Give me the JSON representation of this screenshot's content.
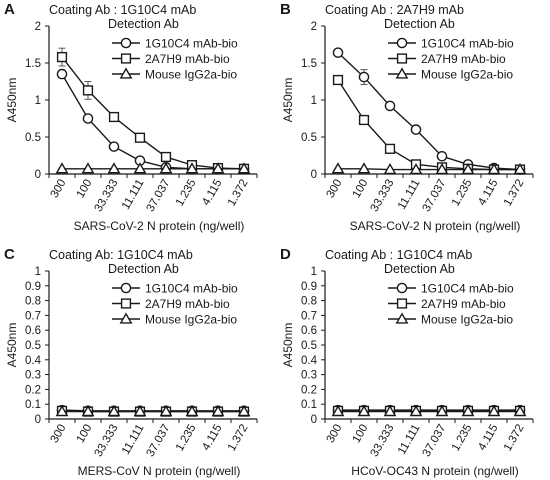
{
  "chart_data": [
    {
      "type": "line",
      "panel": "A",
      "coating_label": "Coating Ab : 1G10C4 mAb",
      "detection_label": "Detection Ab",
      "xlabel": "SARS-CoV-2 N protein (ng/well)",
      "ylabel": "A450nm",
      "categories": [
        "300",
        "100",
        "33.333",
        "11.111",
        "37.037",
        "1.235",
        "4.115",
        "1.372"
      ],
      "ylim": [
        0,
        2
      ],
      "yticks": [
        "0",
        "0.5",
        "1",
        "1.5",
        "2"
      ],
      "legend_position": "top-right",
      "series": [
        {
          "name": "1G10C4 mAb-bio",
          "marker": "circle",
          "values": [
            1.35,
            0.75,
            0.37,
            0.18,
            0.09,
            0.07,
            0.07,
            0.07
          ],
          "errors": [
            0.05,
            0.02,
            0.02,
            0.01,
            0.01,
            0.0,
            0.0,
            0.0
          ]
        },
        {
          "name": "2A7H9 mAb-bio",
          "marker": "square",
          "values": [
            1.58,
            1.13,
            0.77,
            0.49,
            0.23,
            0.12,
            0.08,
            0.07
          ],
          "errors": [
            0.12,
            0.12,
            0.03,
            0.02,
            0.02,
            0.01,
            0.01,
            0.01
          ]
        },
        {
          "name": "Mouse IgG2a-bio",
          "marker": "triangle",
          "values": [
            0.07,
            0.07,
            0.07,
            0.07,
            0.07,
            0.07,
            0.07,
            0.07
          ],
          "errors": [
            0,
            0,
            0,
            0,
            0,
            0,
            0,
            0
          ]
        }
      ]
    },
    {
      "type": "line",
      "panel": "B",
      "coating_label": "Coating Ab : 2A7H9 mAb",
      "detection_label": "Detection Ab",
      "xlabel": "SARS-CoV-2 N protein (ng/well)",
      "ylabel": "A450nm",
      "categories": [
        "300",
        "100",
        "33.333",
        "11.111",
        "37.037",
        "1.235",
        "4.115",
        "1.372"
      ],
      "ylim": [
        0,
        2
      ],
      "yticks": [
        "0",
        "0.5",
        "1",
        "1.5",
        "2"
      ],
      "legend_position": "top-right",
      "series": [
        {
          "name": "1G10C4 mAb-bio",
          "marker": "circle",
          "values": [
            1.64,
            1.31,
            0.92,
            0.6,
            0.24,
            0.13,
            0.08,
            0.06
          ],
          "errors": [
            0.02,
            0.1,
            0.02,
            0.02,
            0.02,
            0.01,
            0.01,
            0.01
          ]
        },
        {
          "name": "2A7H9 mAb-bio",
          "marker": "square",
          "values": [
            1.27,
            0.73,
            0.34,
            0.13,
            0.09,
            0.07,
            0.06,
            0.06
          ],
          "errors": [
            0.02,
            0.02,
            0.02,
            0.01,
            0.01,
            0.0,
            0.0,
            0.0
          ]
        },
        {
          "name": "Mouse IgG2a-bio",
          "marker": "triangle",
          "values": [
            0.07,
            0.07,
            0.06,
            0.06,
            0.06,
            0.06,
            0.06,
            0.06
          ],
          "errors": [
            0,
            0,
            0,
            0,
            0,
            0,
            0,
            0
          ]
        }
      ]
    },
    {
      "type": "line",
      "panel": "C",
      "coating_label": "Coating Ab: 1G10C4 mAb",
      "detection_label": "Detection Ab",
      "xlabel": "MERS-CoV N protein (ng/well)",
      "ylabel": "A450nm",
      "categories": [
        "300",
        "100",
        "33.333",
        "11.111",
        "37.037",
        "1.235",
        "4.115",
        "1.372"
      ],
      "ylim": [
        0,
        1
      ],
      "yticks": [
        "0",
        "0.1",
        "0.2",
        "0.3",
        "0.4",
        "0.5",
        "0.6",
        "0.7",
        "0.8",
        "0.9",
        "1"
      ],
      "legend_position": "top-right",
      "series": [
        {
          "name": "1G10C4 mAb-bio",
          "marker": "circle",
          "values": [
            0.06,
            0.055,
            0.055,
            0.055,
            0.055,
            0.055,
            0.055,
            0.055
          ],
          "errors": [
            0,
            0,
            0,
            0,
            0,
            0,
            0,
            0
          ]
        },
        {
          "name": "2A7H9 mAb-bio",
          "marker": "square",
          "values": [
            0.055,
            0.05,
            0.05,
            0.05,
            0.05,
            0.05,
            0.05,
            0.05
          ],
          "errors": [
            0,
            0,
            0,
            0,
            0,
            0,
            0,
            0
          ]
        },
        {
          "name": "Mouse IgG2a-bio",
          "marker": "triangle",
          "values": [
            0.05,
            0.05,
            0.05,
            0.05,
            0.05,
            0.05,
            0.05,
            0.05
          ],
          "errors": [
            0,
            0,
            0,
            0,
            0,
            0,
            0,
            0
          ]
        }
      ]
    },
    {
      "type": "line",
      "panel": "D",
      "coating_label": "Coating Ab : 1G10C4 mAb",
      "detection_label": "Detection Ab",
      "xlabel": "HCoV-OC43 N protein (ng/well)",
      "ylabel": "A450nm",
      "categories": [
        "300",
        "100",
        "33.333",
        "11.111",
        "37.037",
        "1.235",
        "4.115",
        "1.372"
      ],
      "ylim": [
        0,
        1
      ],
      "yticks": [
        "0",
        "0.1",
        "0.2",
        "0.3",
        "0.4",
        "0.5",
        "0.6",
        "0.7",
        "0.8",
        "0.9",
        "1"
      ],
      "legend_position": "top-right",
      "series": [
        {
          "name": "1G10C4 mAb-bio",
          "marker": "circle",
          "values": [
            0.06,
            0.06,
            0.06,
            0.06,
            0.06,
            0.06,
            0.06,
            0.06
          ],
          "errors": [
            0.005,
            0,
            0,
            0.005,
            0,
            0,
            0.005,
            0
          ]
        },
        {
          "name": "2A7H9 mAb-bio",
          "marker": "square",
          "values": [
            0.055,
            0.055,
            0.055,
            0.055,
            0.055,
            0.055,
            0.055,
            0.055
          ],
          "errors": [
            0,
            0,
            0,
            0,
            0,
            0,
            0,
            0
          ]
        },
        {
          "name": "Mouse IgG2a-bio",
          "marker": "triangle",
          "values": [
            0.05,
            0.05,
            0.05,
            0.05,
            0.05,
            0.05,
            0.05,
            0.05
          ],
          "errors": [
            0,
            0,
            0,
            0,
            0,
            0,
            0,
            0
          ]
        }
      ]
    }
  ]
}
